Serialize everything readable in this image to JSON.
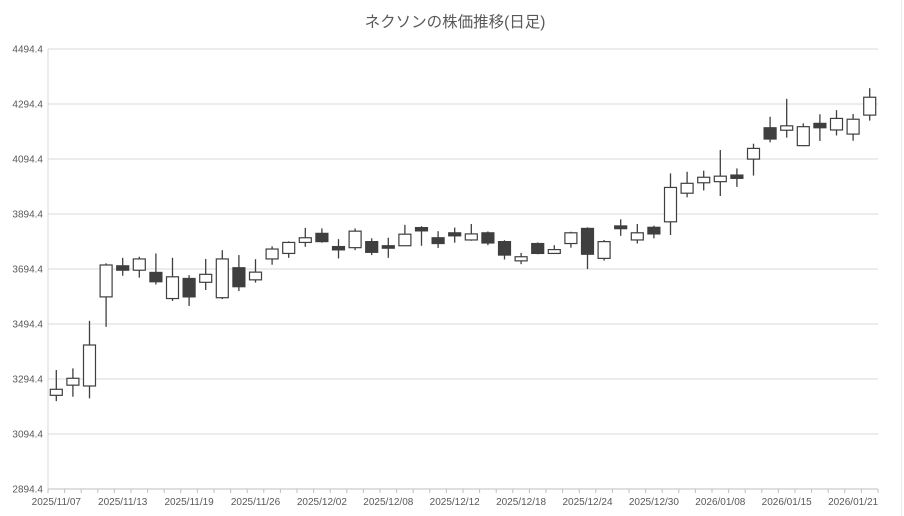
{
  "chart_data": {
    "type": "candlestick",
    "title": "ネクソンの株価推移(日足)",
    "grid": true,
    "legend": false,
    "y_axis": {
      "min": 2894.4,
      "max": 4494.4,
      "step": 200,
      "tick_values": [
        4494.4,
        4294.4,
        4094.4,
        3894.4,
        3694.4,
        3494.4,
        3294.4,
        3094.4,
        2894.4
      ],
      "tick_labels": [
        "4494.4",
        "4294.4",
        "4094.4",
        "3894.4",
        "3694.4",
        "3494.4",
        "3294.4",
        "3094.4",
        "2894.4"
      ]
    },
    "x_axis": {
      "label_interval": 4,
      "tick_labels": [
        "2025/11/07",
        "2025/11/13",
        "2025/11/19",
        "2025/11/26",
        "2025/12/02",
        "2025/12/08",
        "2025/12/12",
        "2025/12/18",
        "2025/12/24",
        "2025/12/30",
        "2026/01/08",
        "2026/01/15",
        "2026/01/21"
      ]
    },
    "colors": {
      "up_fill": "#ffffff",
      "down_fill": "#3f3f3f",
      "outline": "#3f3f3f",
      "grid": "#d9d9d9",
      "axis_line": "#bfbfbf",
      "text": "#595959"
    },
    "candles": [
      {
        "date": "2025/11/07",
        "open": 3235,
        "high": 3327,
        "low": 3214,
        "close": 3257
      },
      {
        "date": "2025/11/10",
        "open": 3272,
        "high": 3333,
        "low": 3230,
        "close": 3297
      },
      {
        "date": "2025/11/11",
        "open": 3269,
        "high": 3506,
        "low": 3224,
        "close": 3418
      },
      {
        "date": "2025/11/12",
        "open": 3593,
        "high": 3715,
        "low": 3484,
        "close": 3709
      },
      {
        "date": "2025/11/13",
        "open": 3706,
        "high": 3735,
        "low": 3670,
        "close": 3690
      },
      {
        "date": "2025/11/14",
        "open": 3690,
        "high": 3739,
        "low": 3663,
        "close": 3731
      },
      {
        "date": "2025/11/17",
        "open": 3682,
        "high": 3751,
        "low": 3638,
        "close": 3648
      },
      {
        "date": "2025/11/18",
        "open": 3587,
        "high": 3735,
        "low": 3578,
        "close": 3666
      },
      {
        "date": "2025/11/19",
        "open": 3660,
        "high": 3672,
        "low": 3560,
        "close": 3593
      },
      {
        "date": "2025/11/20",
        "open": 3646,
        "high": 3731,
        "low": 3618,
        "close": 3675
      },
      {
        "date": "2025/11/21",
        "open": 3590,
        "high": 3763,
        "low": 3585,
        "close": 3731
      },
      {
        "date": "2025/11/25",
        "open": 3699,
        "high": 3745,
        "low": 3614,
        "close": 3630
      },
      {
        "date": "2025/11/26",
        "open": 3655,
        "high": 3730,
        "low": 3645,
        "close": 3683
      },
      {
        "date": "2025/11/27",
        "open": 3731,
        "high": 3777,
        "low": 3710,
        "close": 3767
      },
      {
        "date": "2025/11/28",
        "open": 3751,
        "high": 3795,
        "low": 3735,
        "close": 3791
      },
      {
        "date": "2025/12/01",
        "open": 3791,
        "high": 3844,
        "low": 3775,
        "close": 3808
      },
      {
        "date": "2025/12/02",
        "open": 3824,
        "high": 3842,
        "low": 3790,
        "close": 3794
      },
      {
        "date": "2025/12/03",
        "open": 3776,
        "high": 3803,
        "low": 3733,
        "close": 3764
      },
      {
        "date": "2025/12/04",
        "open": 3772,
        "high": 3842,
        "low": 3763,
        "close": 3832
      },
      {
        "date": "2025/12/05",
        "open": 3794,
        "high": 3806,
        "low": 3745,
        "close": 3755
      },
      {
        "date": "2025/12/08",
        "open": 3779,
        "high": 3808,
        "low": 3735,
        "close": 3770
      },
      {
        "date": "2025/12/09",
        "open": 3779,
        "high": 3855,
        "low": 3779,
        "close": 3821
      },
      {
        "date": "2025/12/10",
        "open": 3845,
        "high": 3850,
        "low": 3779,
        "close": 3833
      },
      {
        "date": "2025/12/11",
        "open": 3808,
        "high": 3832,
        "low": 3771,
        "close": 3787
      },
      {
        "date": "2025/12/12",
        "open": 3826,
        "high": 3845,
        "low": 3790,
        "close": 3815
      },
      {
        "date": "2025/12/15",
        "open": 3800,
        "high": 3858,
        "low": 3797,
        "close": 3822
      },
      {
        "date": "2025/12/16",
        "open": 3826,
        "high": 3831,
        "low": 3781,
        "close": 3789
      },
      {
        "date": "2025/12/17",
        "open": 3794,
        "high": 3799,
        "low": 3729,
        "close": 3745
      },
      {
        "date": "2025/12/18",
        "open": 3724,
        "high": 3753,
        "low": 3712,
        "close": 3739
      },
      {
        "date": "2025/12/19",
        "open": 3787,
        "high": 3791,
        "low": 3748,
        "close": 3751
      },
      {
        "date": "2025/12/22",
        "open": 3751,
        "high": 3781,
        "low": 3750,
        "close": 3765
      },
      {
        "date": "2025/12/23",
        "open": 3787,
        "high": 3830,
        "low": 3772,
        "close": 3826
      },
      {
        "date": "2025/12/24",
        "open": 3842,
        "high": 3846,
        "low": 3694,
        "close": 3748
      },
      {
        "date": "2025/12/25",
        "open": 3733,
        "high": 3800,
        "low": 3725,
        "close": 3794
      },
      {
        "date": "2025/12/26",
        "open": 3851,
        "high": 3875,
        "low": 3815,
        "close": 3841
      },
      {
        "date": "2025/12/29",
        "open": 3800,
        "high": 3858,
        "low": 3787,
        "close": 3826
      },
      {
        "date": "2025/12/30",
        "open": 3846,
        "high": 3852,
        "low": 3806,
        "close": 3822
      },
      {
        "date": "2026/01/05",
        "open": 3866,
        "high": 4042,
        "low": 3818,
        "close": 3991
      },
      {
        "date": "2026/01/06",
        "open": 3970,
        "high": 4048,
        "low": 3955,
        "close": 4006
      },
      {
        "date": "2026/01/07",
        "open": 4008,
        "high": 4052,
        "low": 3980,
        "close": 4028
      },
      {
        "date": "2026/01/08",
        "open": 4012,
        "high": 4127,
        "low": 3960,
        "close": 4032
      },
      {
        "date": "2026/01/09",
        "open": 4036,
        "high": 4060,
        "low": 3993,
        "close": 4024
      },
      {
        "date": "2026/01/13",
        "open": 4094,
        "high": 4150,
        "low": 4034,
        "close": 4133
      },
      {
        "date": "2026/01/14",
        "open": 4208,
        "high": 4248,
        "low": 4155,
        "close": 4167
      },
      {
        "date": "2026/01/15",
        "open": 4199,
        "high": 4313,
        "low": 4172,
        "close": 4215
      },
      {
        "date": "2026/01/16",
        "open": 4143,
        "high": 4224,
        "low": 4141,
        "close": 4212
      },
      {
        "date": "2026/01/19",
        "open": 4224,
        "high": 4257,
        "low": 4160,
        "close": 4208
      },
      {
        "date": "2026/01/20",
        "open": 4200,
        "high": 4272,
        "low": 4180,
        "close": 4242
      },
      {
        "date": "2026/01/21",
        "open": 4185,
        "high": 4258,
        "low": 4161,
        "close": 4239
      },
      {
        "date": "2026/01/22",
        "open": 4254,
        "high": 4352,
        "low": 4234,
        "close": 4319
      }
    ]
  }
}
